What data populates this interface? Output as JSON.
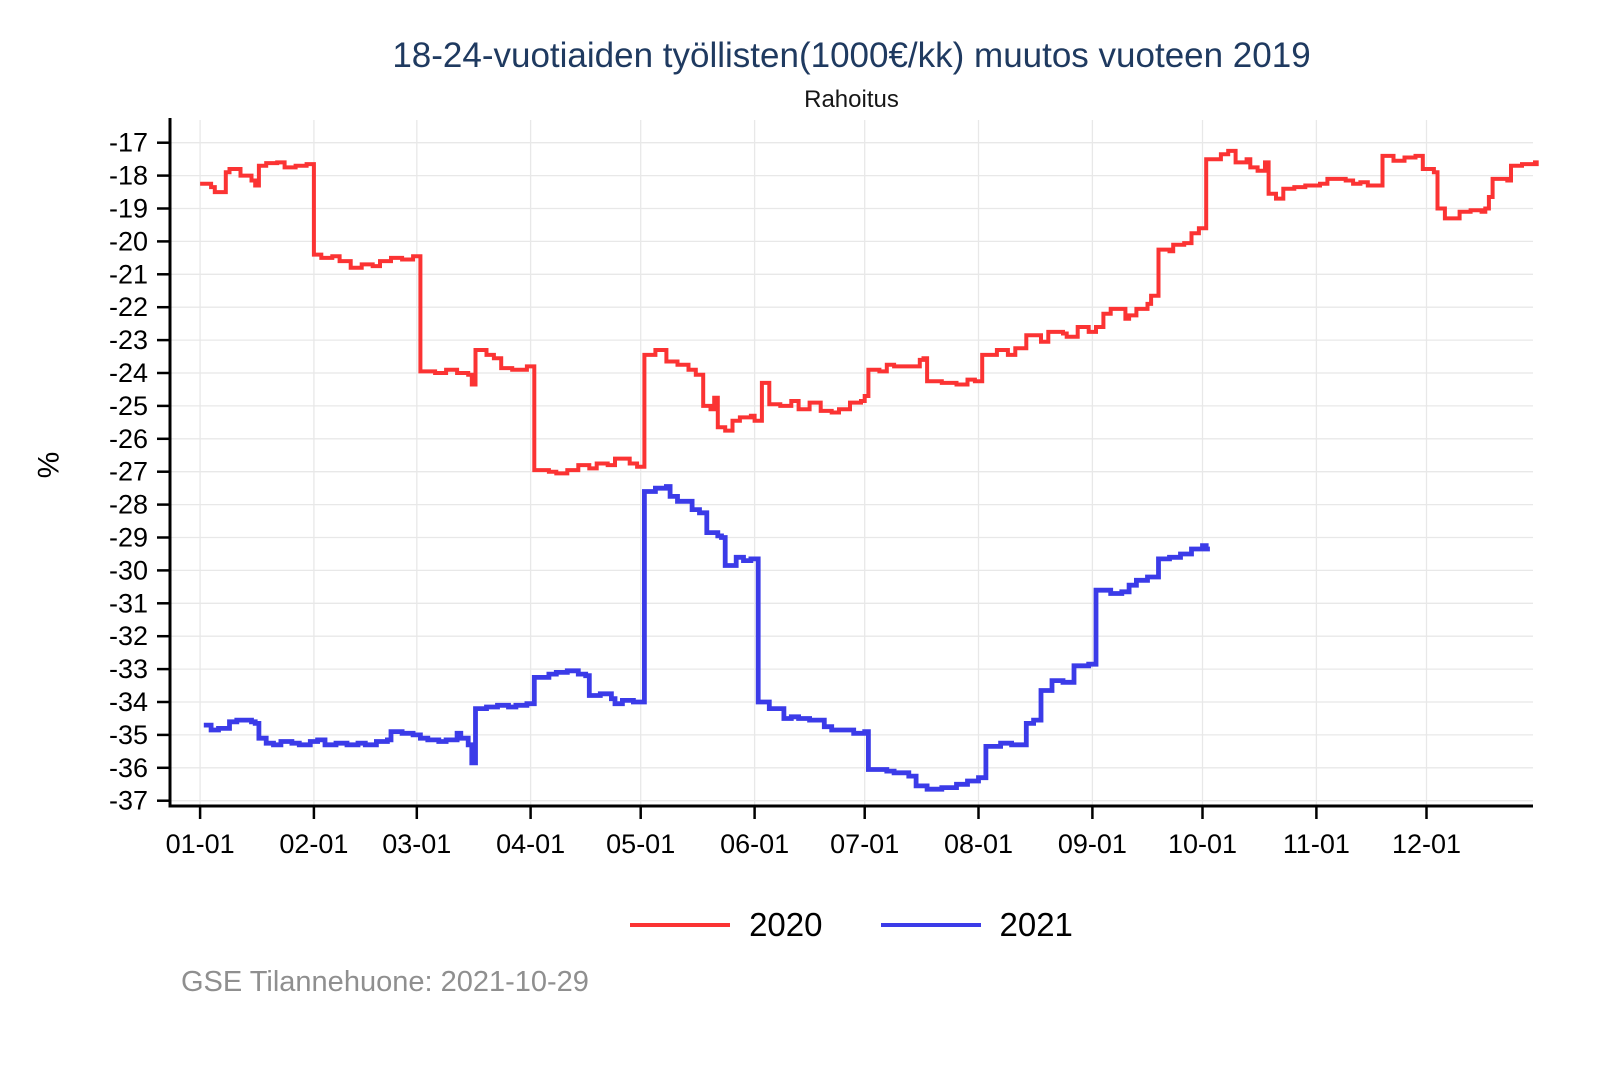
{
  "chart_data": {
    "type": "line",
    "step": true,
    "title": "18-24-vuotiaiden työllisten(1000€/kk) muutos vuoteen 2019",
    "subtitle": "Rahoitus",
    "ylabel": "%",
    "caption": "GSE Tilannehuone: 2021-10-29",
    "grid": "on",
    "legend_position": "bottom",
    "xlim_days": [
      -8.2,
      363
    ],
    "ylim": [
      -37.16,
      -16.31
    ],
    "yticks": [
      -17,
      -18,
      -19,
      -20,
      -21,
      -22,
      -23,
      -24,
      -25,
      -26,
      -27,
      -28,
      -29,
      -30,
      -31,
      -32,
      -33,
      -34,
      -35,
      -36,
      -37
    ],
    "xticks": {
      "labels": [
        "01-01",
        "02-01",
        "03-01",
        "04-01",
        "05-01",
        "06-01",
        "07-01",
        "08-01",
        "09-01",
        "10-01",
        "11-01",
        "12-01"
      ],
      "days": [
        0,
        31,
        59,
        90,
        120,
        151,
        181,
        212,
        243,
        273,
        304,
        334
      ]
    },
    "colors": {
      "series_2020": "#fb3333",
      "series_2021": "#3b3be8",
      "title": "#1f3a60",
      "grid": "#e8e8e8",
      "axis": "#000000",
      "caption": "#8f8f8f"
    },
    "series": [
      {
        "name": "2020",
        "color": "#fb3333",
        "end_day": 364.8,
        "points": [
          [
            0,
            -18.25
          ],
          [
            3,
            -18.35
          ],
          [
            4,
            -18.5
          ],
          [
            7,
            -17.9
          ],
          [
            8,
            -17.8
          ],
          [
            11,
            -18.0
          ],
          [
            14,
            -18.15
          ],
          [
            15,
            -18.3
          ],
          [
            16,
            -17.7
          ],
          [
            18,
            -17.62
          ],
          [
            21,
            -17.6
          ],
          [
            23,
            -17.75
          ],
          [
            26,
            -17.7
          ],
          [
            29,
            -17.65
          ],
          [
            31,
            -20.4
          ],
          [
            33,
            -20.5
          ],
          [
            36,
            -20.45
          ],
          [
            38,
            -20.6
          ],
          [
            41,
            -20.8
          ],
          [
            44,
            -20.7
          ],
          [
            47,
            -20.75
          ],
          [
            49,
            -20.6
          ],
          [
            52,
            -20.5
          ],
          [
            55,
            -20.55
          ],
          [
            58,
            -20.45
          ],
          [
            60,
            -23.95
          ],
          [
            64,
            -24.0
          ],
          [
            67,
            -23.9
          ],
          [
            70,
            -24.0
          ],
          [
            73,
            -24.05
          ],
          [
            74,
            -24.35
          ],
          [
            75,
            -23.3
          ],
          [
            78,
            -23.45
          ],
          [
            80,
            -23.55
          ],
          [
            82,
            -23.85
          ],
          [
            85,
            -23.9
          ],
          [
            89,
            -23.8
          ],
          [
            91,
            -26.95
          ],
          [
            95,
            -27.0
          ],
          [
            97,
            -27.05
          ],
          [
            100,
            -26.95
          ],
          [
            103,
            -26.8
          ],
          [
            106,
            -26.9
          ],
          [
            108,
            -26.75
          ],
          [
            111,
            -26.8
          ],
          [
            113,
            -26.6
          ],
          [
            117,
            -26.75
          ],
          [
            119,
            -26.85
          ],
          [
            121,
            -23.45
          ],
          [
            124,
            -23.3
          ],
          [
            127,
            -23.65
          ],
          [
            130,
            -23.75
          ],
          [
            133,
            -23.9
          ],
          [
            135,
            -24.05
          ],
          [
            137,
            -25.0
          ],
          [
            139,
            -25.1
          ],
          [
            140,
            -24.75
          ],
          [
            141,
            -25.65
          ],
          [
            143,
            -25.75
          ],
          [
            145,
            -25.45
          ],
          [
            147,
            -25.35
          ],
          [
            150,
            -25.3
          ],
          [
            151,
            -25.45
          ],
          [
            153,
            -24.3
          ],
          [
            155,
            -24.95
          ],
          [
            158,
            -25.0
          ],
          [
            161,
            -24.85
          ],
          [
            163,
            -25.1
          ],
          [
            166,
            -24.9
          ],
          [
            169,
            -25.15
          ],
          [
            172,
            -25.2
          ],
          [
            174,
            -25.1
          ],
          [
            177,
            -24.9
          ],
          [
            180,
            -24.85
          ],
          [
            181,
            -24.7
          ],
          [
            182,
            -23.9
          ],
          [
            185,
            -23.95
          ],
          [
            187,
            -23.75
          ],
          [
            189,
            -23.8
          ],
          [
            193,
            -23.8
          ],
          [
            196,
            -23.6
          ],
          [
            197,
            -23.55
          ],
          [
            198,
            -24.25
          ],
          [
            202,
            -24.3
          ],
          [
            206,
            -24.35
          ],
          [
            209,
            -24.2
          ],
          [
            211,
            -24.25
          ],
          [
            213,
            -23.45
          ],
          [
            217,
            -23.3
          ],
          [
            220,
            -23.45
          ],
          [
            222,
            -23.25
          ],
          [
            225,
            -22.85
          ],
          [
            229,
            -23.05
          ],
          [
            231,
            -22.75
          ],
          [
            235,
            -22.8
          ],
          [
            236,
            -22.9
          ],
          [
            239,
            -22.6
          ],
          [
            242,
            -22.75
          ],
          [
            244,
            -22.6
          ],
          [
            246,
            -22.2
          ],
          [
            248,
            -22.05
          ],
          [
            252,
            -22.35
          ],
          [
            253,
            -22.25
          ],
          [
            255,
            -22.05
          ],
          [
            258,
            -21.9
          ],
          [
            259,
            -21.65
          ],
          [
            261,
            -20.25
          ],
          [
            264,
            -20.3
          ],
          [
            265,
            -20.1
          ],
          [
            268,
            -20.05
          ],
          [
            270,
            -19.75
          ],
          [
            272,
            -19.6
          ],
          [
            274,
            -17.5
          ],
          [
            278,
            -17.35
          ],
          [
            280,
            -17.25
          ],
          [
            282,
            -17.6
          ],
          [
            285,
            -17.5
          ],
          [
            286,
            -17.75
          ],
          [
            288,
            -17.85
          ],
          [
            290,
            -17.6
          ],
          [
            291,
            -18.55
          ],
          [
            293,
            -18.7
          ],
          [
            295,
            -18.4
          ],
          [
            298,
            -18.35
          ],
          [
            301,
            -18.3
          ],
          [
            305,
            -18.25
          ],
          [
            307,
            -18.1
          ],
          [
            312,
            -18.15
          ],
          [
            314,
            -18.25
          ],
          [
            316,
            -18.2
          ],
          [
            318,
            -18.3
          ],
          [
            321,
            -18.3
          ],
          [
            322,
            -17.4
          ],
          [
            325,
            -17.55
          ],
          [
            328,
            -17.45
          ],
          [
            331,
            -17.4
          ],
          [
            333,
            -17.8
          ],
          [
            336,
            -17.9
          ],
          [
            337,
            -19.0
          ],
          [
            339,
            -19.3
          ],
          [
            343,
            -19.1
          ],
          [
            346,
            -19.05
          ],
          [
            349,
            -19.1
          ],
          [
            350,
            -19.0
          ],
          [
            351,
            -18.65
          ],
          [
            352,
            -18.1
          ],
          [
            356,
            -18.15
          ],
          [
            357,
            -17.7
          ],
          [
            360,
            -17.65
          ],
          [
            364,
            -17.6
          ]
        ]
      },
      {
        "name": "2021",
        "color": "#3b3be8",
        "end_day": 275,
        "points": [
          [
            1,
            -34.7
          ],
          [
            3,
            -34.85
          ],
          [
            5,
            -34.8
          ],
          [
            8,
            -34.6
          ],
          [
            10,
            -34.55
          ],
          [
            14,
            -34.6
          ],
          [
            15,
            -34.65
          ],
          [
            16,
            -35.1
          ],
          [
            18,
            -35.25
          ],
          [
            20,
            -35.3
          ],
          [
            22,
            -35.2
          ],
          [
            25,
            -35.25
          ],
          [
            27,
            -35.3
          ],
          [
            30,
            -35.2
          ],
          [
            32,
            -35.15
          ],
          [
            34,
            -35.3
          ],
          [
            37,
            -35.25
          ],
          [
            40,
            -35.3
          ],
          [
            43,
            -35.25
          ],
          [
            45,
            -35.3
          ],
          [
            48,
            -35.2
          ],
          [
            51,
            -35.15
          ],
          [
            52,
            -34.9
          ],
          [
            55,
            -34.95
          ],
          [
            58,
            -35.0
          ],
          [
            60,
            -35.1
          ],
          [
            62,
            -35.15
          ],
          [
            65,
            -35.2
          ],
          [
            67,
            -35.15
          ],
          [
            70,
            -34.95
          ],
          [
            71,
            -35.1
          ],
          [
            73,
            -35.3
          ],
          [
            74,
            -35.85
          ],
          [
            75,
            -34.2
          ],
          [
            78,
            -34.15
          ],
          [
            81,
            -34.1
          ],
          [
            84,
            -34.15
          ],
          [
            86,
            -34.1
          ],
          [
            89,
            -34.05
          ],
          [
            91,
            -33.25
          ],
          [
            95,
            -33.15
          ],
          [
            97,
            -33.1
          ],
          [
            100,
            -33.05
          ],
          [
            103,
            -33.15
          ],
          [
            105,
            -33.2
          ],
          [
            106,
            -33.8
          ],
          [
            109,
            -33.75
          ],
          [
            112,
            -33.9
          ],
          [
            113,
            -34.05
          ],
          [
            115,
            -33.95
          ],
          [
            118,
            -34.0
          ],
          [
            121,
            -27.6
          ],
          [
            124,
            -27.5
          ],
          [
            127,
            -27.45
          ],
          [
            128,
            -27.75
          ],
          [
            130,
            -27.9
          ],
          [
            134,
            -28.15
          ],
          [
            136,
            -28.25
          ],
          [
            138,
            -28.85
          ],
          [
            141,
            -28.95
          ],
          [
            142,
            -29.0
          ],
          [
            143,
            -29.85
          ],
          [
            146,
            -29.6
          ],
          [
            148,
            -29.7
          ],
          [
            150,
            -29.65
          ],
          [
            152,
            -34.0
          ],
          [
            155,
            -34.2
          ],
          [
            159,
            -34.5
          ],
          [
            161,
            -34.45
          ],
          [
            163,
            -34.5
          ],
          [
            166,
            -34.55
          ],
          [
            170,
            -34.75
          ],
          [
            172,
            -34.85
          ],
          [
            176,
            -34.85
          ],
          [
            178,
            -34.95
          ],
          [
            181,
            -34.9
          ],
          [
            182,
            -36.05
          ],
          [
            187,
            -36.1
          ],
          [
            189,
            -36.15
          ],
          [
            193,
            -36.25
          ],
          [
            195,
            -36.55
          ],
          [
            198,
            -36.65
          ],
          [
            202,
            -36.6
          ],
          [
            206,
            -36.5
          ],
          [
            209,
            -36.4
          ],
          [
            212,
            -36.3
          ],
          [
            214,
            -35.35
          ],
          [
            218,
            -35.25
          ],
          [
            221,
            -35.3
          ],
          [
            225,
            -34.65
          ],
          [
            227,
            -34.55
          ],
          [
            229,
            -33.65
          ],
          [
            232,
            -33.35
          ],
          [
            235,
            -33.4
          ],
          [
            238,
            -32.9
          ],
          [
            242,
            -32.85
          ],
          [
            244,
            -30.6
          ],
          [
            248,
            -30.7
          ],
          [
            251,
            -30.65
          ],
          [
            253,
            -30.45
          ],
          [
            255,
            -30.3
          ],
          [
            258,
            -30.2
          ],
          [
            261,
            -29.65
          ],
          [
            264,
            -29.6
          ],
          [
            267,
            -29.5
          ],
          [
            270,
            -29.35
          ],
          [
            273,
            -29.25
          ],
          [
            274,
            -29.35
          ]
        ]
      }
    ]
  }
}
